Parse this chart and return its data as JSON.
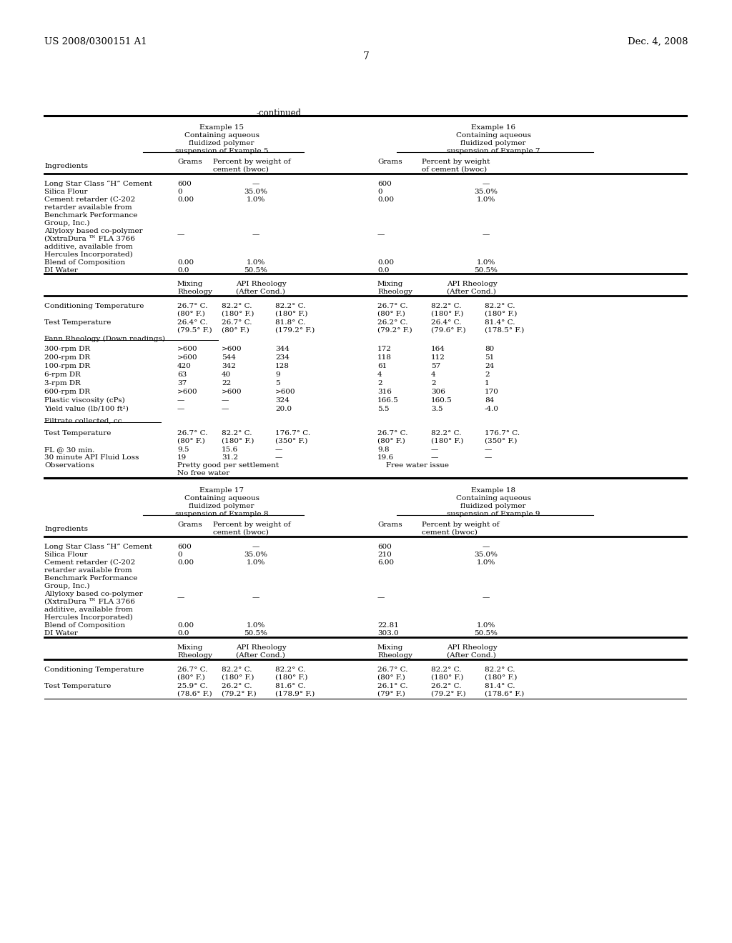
{
  "bg_color": "#ffffff",
  "header_left": "US 2008/0300151 A1",
  "header_right": "Dec. 4, 2008",
  "page_number": "7"
}
